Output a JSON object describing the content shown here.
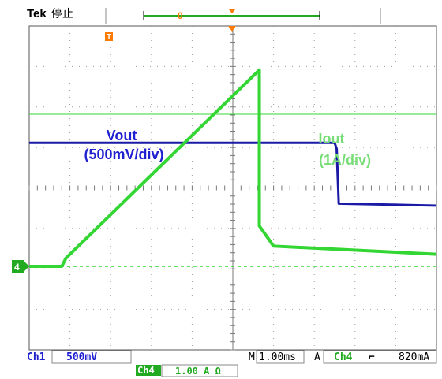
{
  "header": {
    "brand": "Tek",
    "run_state": "停止",
    "trigger_marker": "T",
    "record_marker": "0"
  },
  "annotations": {
    "vout_line1": "Vout",
    "vout_line2": "(500mV/div)",
    "iout_line1": "Iout",
    "iout_line2": "(1A/div)"
  },
  "channel_marker": "4",
  "footer": {
    "ch1_label": "Ch1",
    "ch1_scale": "500mV",
    "timebase_prefix": "M",
    "timebase": "1.00ms",
    "trigger_prefix": "A",
    "trigger_source": "Ch4",
    "trigger_slope": "⌐",
    "trigger_level": "820mA",
    "ch4_label": "Ch4",
    "ch4_scale": "1.00 A Ω"
  },
  "colors": {
    "ch1": "#1a1aa6",
    "ch1_text": "#2020d0",
    "ch4": "#33d633",
    "ch4_text": "#77dd77",
    "grid": "#9a9a9a",
    "trigger": "#ff7a00"
  },
  "chart_data": {
    "type": "line",
    "xlabel": "",
    "ylabel": "",
    "x_divisions": 10,
    "y_divisions": 8,
    "x_unit": "ms",
    "x_per_div": 1.0,
    "series": [
      {
        "name": "Vout",
        "channel": "Ch1",
        "scale": "500mV/div",
        "points": [
          [
            0,
            3.05
          ],
          [
            7.5,
            3.05
          ],
          [
            7.55,
            2.9
          ],
          [
            7.6,
            1.55
          ],
          [
            10,
            1.5
          ]
        ]
      },
      {
        "name": "Iout",
        "channel": "Ch4",
        "scale": "1A/div",
        "points": [
          [
            0,
            0.0
          ],
          [
            0.8,
            0.0
          ],
          [
            0.9,
            0.2
          ],
          [
            5.65,
            4.85
          ],
          [
            5.65,
            1.0
          ],
          [
            6.0,
            0.5
          ],
          [
            10,
            0.3
          ]
        ]
      }
    ],
    "reference_lines": {
      "ch4_ground_div": 0.0,
      "trigger_level_div": 4.9
    }
  }
}
